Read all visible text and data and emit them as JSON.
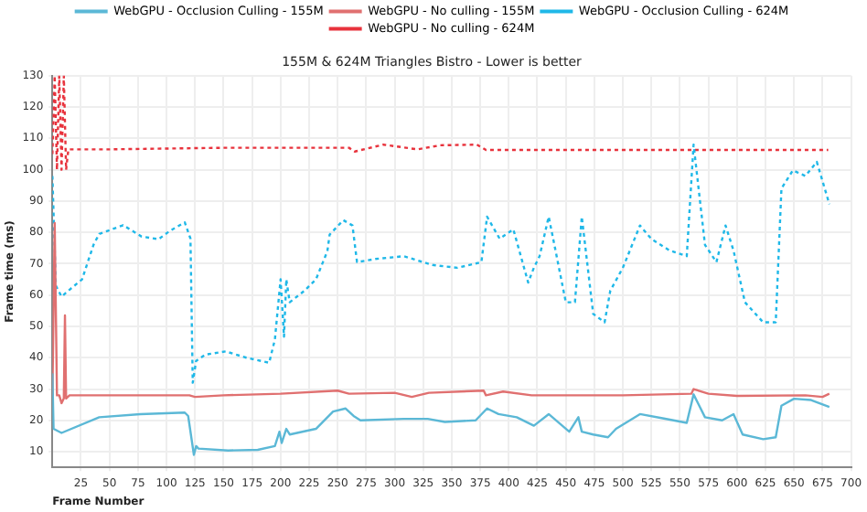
{
  "chart_data": {
    "type": "line",
    "title": "155M & 624M Triangles Bistro - Lower is better",
    "xlabel": "Frame Number",
    "ylabel": "Frame time (ms)",
    "xlim": [
      0,
      700
    ],
    "xticks": [
      25,
      50,
      75,
      100,
      125,
      150,
      175,
      200,
      225,
      250,
      275,
      300,
      325,
      350,
      375,
      400,
      425,
      450,
      475,
      500,
      525,
      550,
      575,
      600,
      625,
      650,
      675,
      700
    ],
    "ylim": [
      5,
      130
    ],
    "yticks": [
      10,
      20,
      30,
      40,
      50,
      60,
      70,
      80,
      90,
      100,
      110,
      120,
      130
    ],
    "grid": true,
    "legend": "top",
    "marker": "none",
    "series": [
      {
        "name": "WebGPU - Occlusion Culling - 155M",
        "color": "#5bb8d6",
        "line_style": "solid",
        "x": [
          0,
          1,
          8,
          41,
          77,
          116,
          119,
          124,
          126,
          128,
          154,
          180,
          195,
          199,
          201,
          205,
          208,
          231,
          246,
          257,
          264,
          270,
          308,
          329,
          344,
          371,
          381,
          391,
          407,
          422,
          435,
          453,
          461,
          464,
          474,
          487,
          494,
          515,
          536,
          556,
          562,
          572,
          587,
          597,
          605,
          623,
          634,
          639,
          650,
          665,
          681
        ],
        "values": [
          35,
          17.3,
          16,
          21,
          22,
          22.5,
          21.4,
          9,
          11.8,
          11,
          10.4,
          10.6,
          11.8,
          16.4,
          12.8,
          17.3,
          15.5,
          17.3,
          22.8,
          23.8,
          21.4,
          20,
          20.5,
          20.5,
          19.5,
          20,
          23.8,
          22,
          21,
          18.3,
          22,
          16.4,
          21,
          16.4,
          15.5,
          14.6,
          17.3,
          22,
          20.6,
          19.2,
          28.3,
          21,
          20,
          22,
          15.5,
          14,
          14.6,
          24.7,
          26.9,
          26.5,
          24.3
        ]
      },
      {
        "name": "WebGPU - No culling - 155M",
        "color": "#e07070",
        "line_style": "solid",
        "x": [
          0,
          2,
          4,
          6,
          8,
          10,
          11,
          12,
          15,
          120,
          125,
          150,
          200,
          250,
          260,
          300,
          315,
          330,
          378,
          380,
          395,
          420,
          500,
          560,
          562,
          575,
          600,
          660,
          675,
          681
        ],
        "values": [
          28,
          83,
          28,
          28,
          25.5,
          27,
          53.5,
          27,
          28,
          28,
          27.5,
          28,
          28.5,
          29.5,
          28.5,
          28.8,
          27.5,
          28.8,
          29.5,
          28,
          29.2,
          28,
          28,
          28.5,
          30,
          28.5,
          27.8,
          28,
          27.5,
          28.5
        ]
      },
      {
        "name": "WebGPU - Occlusion Culling - 624M",
        "color": "#1fb8e8",
        "line_style": "dotted",
        "x": [
          0,
          3,
          8,
          16,
          26,
          36,
          41,
          62,
          78,
          93,
          103,
          116,
          121,
          123,
          126,
          134,
          152,
          170,
          190,
          195,
          200,
          203,
          205,
          208,
          221,
          231,
          241,
          243,
          255,
          263,
          267,
          283,
          308,
          333,
          355,
          376,
          381,
          392,
          404,
          417,
          422,
          427,
          435,
          440,
          450,
          458,
          464,
          474,
          484,
          489,
          500,
          515,
          525,
          541,
          556,
          562,
          572,
          582,
          590,
          597,
          607,
          623,
          634,
          639,
          649,
          660,
          670,
          681
        ],
        "values": [
          98,
          63,
          59.5,
          62,
          65,
          76,
          79.5,
          82.3,
          78.7,
          77.8,
          80.5,
          83.2,
          78,
          32,
          39,
          41,
          42,
          40,
          38.4,
          45.8,
          65,
          46.7,
          65,
          57.7,
          61.4,
          65,
          74,
          79.3,
          83.9,
          82.2,
          70.5,
          71.5,
          72.4,
          69.6,
          68.7,
          70.5,
          85,
          78,
          81,
          64,
          68.7,
          72.4,
          85,
          76,
          57.7,
          57.7,
          85,
          54,
          51.3,
          61.4,
          68.7,
          82.2,
          77.9,
          74.2,
          72.4,
          108,
          76,
          70.5,
          82.2,
          74.2,
          57.7,
          51.3,
          51.3,
          94,
          99.8,
          98,
          102.5,
          89
        ]
      },
      {
        "name": "WebGPU - No culling - 624M",
        "color": "#e8323c",
        "line_style": "dotted",
        "x": [
          0,
          2,
          4,
          6,
          8,
          10,
          12,
          14,
          50,
          150,
          260,
          265,
          290,
          320,
          340,
          372,
          380,
          680
        ],
        "values": [
          105,
          130,
          100,
          130,
          100,
          130,
          100,
          106.5,
          106.5,
          107,
          107,
          105.8,
          108,
          106.5,
          107.8,
          108,
          106.3,
          106.3
        ]
      }
    ]
  }
}
